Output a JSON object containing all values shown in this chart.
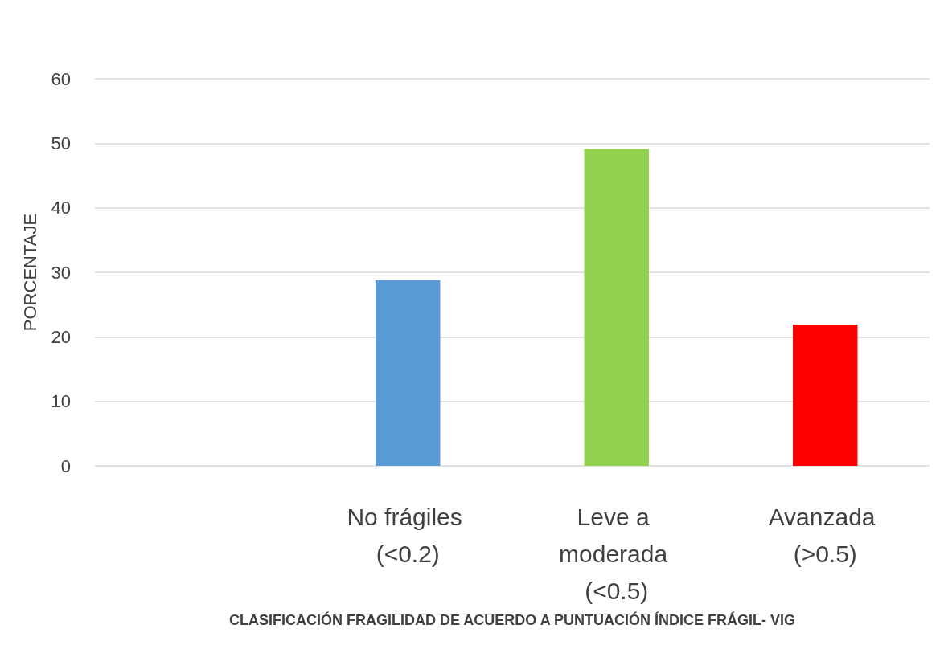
{
  "chart_data": {
    "type": "bar",
    "categories": [
      null,
      "No frágiles (<0.2)",
      "Leve a moderada (<0.5)",
      "Avanzada (>0.5)"
    ],
    "values": [
      null,
      28.8,
      49.1,
      21.9
    ],
    "colors": [
      null,
      "#5b9bd5",
      "#92d050",
      "#ff0000"
    ],
    "ylabel": "PORCENTAJE",
    "xlabel": "CLASIFICACIÓN FRAGILIDAD DE ACUERDO A PUNTUACIÓN ÍNDICE FRÁGIL- VIG",
    "ylim": [
      0,
      60
    ],
    "yticks": [
      0,
      10,
      20,
      30,
      40,
      50,
      60
    ],
    "grid": "y"
  }
}
